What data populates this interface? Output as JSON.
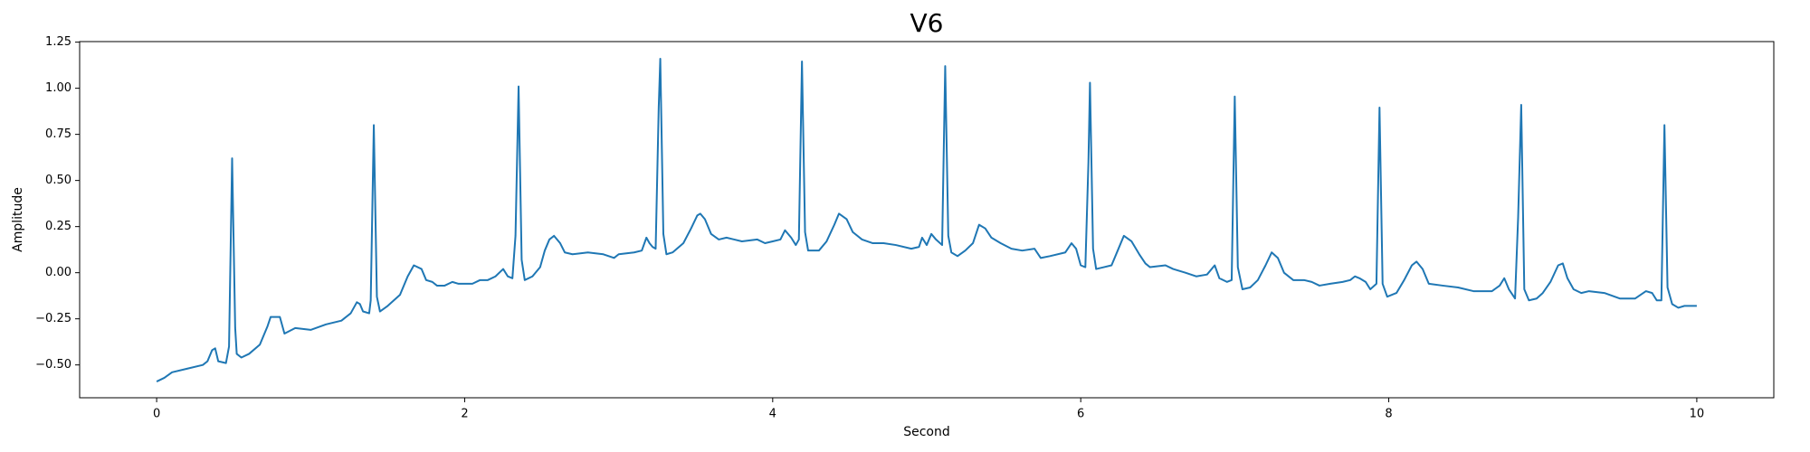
{
  "chart_data": {
    "type": "line",
    "title": "V6",
    "x_label": "Second",
    "y_label": "Amplitude",
    "xlim": [
      -0.5,
      10.5
    ],
    "ylim": [
      -0.678,
      1.253
    ],
    "xticks": [
      0,
      2,
      4,
      6,
      8,
      10
    ],
    "yticks": [
      {
        "value": -0.5,
        "label": "−0.50"
      },
      {
        "value": -0.25,
        "label": "−0.25"
      },
      {
        "value": 0,
        "label": "0.00"
      },
      0.25,
      {
        "value": 0.5,
        "label": "0.50"
      },
      0.75,
      {
        "value": 1,
        "label": "1.00"
      },
      1.25
    ],
    "grid": false,
    "series": [
      {
        "name": "V6",
        "color": "#1f77b4",
        "x": [
          0,
          0.05,
          0.1,
          0.2,
          0.3,
          0.33,
          0.36,
          0.38,
          0.4,
          0.45,
          0.47,
          0.49,
          0.51,
          0.52,
          0.55,
          0.6,
          0.67,
          0.72,
          0.74,
          0.8,
          0.83,
          0.9,
          1.0,
          1.1,
          1.2,
          1.26,
          1.3,
          1.32,
          1.34,
          1.38,
          1.39,
          1.41,
          1.43,
          1.45,
          1.5,
          1.58,
          1.63,
          1.67,
          1.72,
          1.75,
          1.79,
          1.82,
          1.87,
          1.92,
          1.96,
          2.05,
          2.1,
          2.15,
          2.2,
          2.25,
          2.28,
          2.31,
          2.33,
          2.35,
          2.37,
          2.39,
          2.44,
          2.49,
          2.52,
          2.55,
          2.58,
          2.62,
          2.65,
          2.7,
          2.8,
          2.9,
          2.97,
          3.0,
          3.1,
          3.15,
          3.18,
          3.2,
          3.22,
          3.24,
          3.26,
          3.27,
          3.29,
          3.31,
          3.35,
          3.42,
          3.47,
          3.51,
          3.53,
          3.56,
          3.6,
          3.65,
          3.7,
          3.75,
          3.8,
          3.9,
          3.95,
          4.0,
          4.05,
          4.08,
          4.12,
          4.15,
          4.17,
          4.19,
          4.21,
          4.23,
          4.3,
          4.35,
          4.4,
          4.43,
          4.48,
          4.52,
          4.58,
          4.65,
          4.72,
          4.8,
          4.9,
          4.95,
          4.97,
          5.0,
          5.03,
          5.06,
          5.1,
          5.12,
          5.14,
          5.16,
          5.2,
          5.25,
          5.3,
          5.34,
          5.38,
          5.42,
          5.48,
          5.55,
          5.62,
          5.7,
          5.74,
          5.8,
          5.9,
          5.94,
          5.97,
          6.0,
          6.03,
          6.05,
          6.06,
          6.08,
          6.1,
          6.15,
          6.2,
          6.24,
          6.28,
          6.33,
          6.38,
          6.42,
          6.45,
          6.55,
          6.6,
          6.68,
          6.75,
          6.82,
          6.87,
          6.9,
          6.95,
          6.98,
          7.0,
          7.02,
          7.05,
          7.1,
          7.15,
          7.2,
          7.24,
          7.28,
          7.32,
          7.38,
          7.45,
          7.5,
          7.55,
          7.62,
          7.7,
          7.75,
          7.78,
          7.81,
          7.85,
          7.88,
          7.92,
          7.94,
          7.96,
          7.99,
          8.05,
          8.1,
          8.15,
          8.18,
          8.22,
          8.26,
          8.35,
          8.45,
          8.55,
          8.6,
          8.67,
          8.72,
          8.75,
          8.78,
          8.82,
          8.84,
          8.86,
          8.88,
          8.91,
          8.96,
          9.0,
          9.05,
          9.1,
          9.13,
          9.16,
          9.2,
          9.25,
          9.3,
          9.4,
          9.5,
          9.6,
          9.67,
          9.71,
          9.74,
          9.77,
          9.79,
          9.81,
          9.84,
          9.88,
          9.92,
          10.0
        ],
        "values": [
          -0.59,
          -0.57,
          -0.54,
          -0.52,
          -0.5,
          -0.48,
          -0.42,
          -0.41,
          -0.48,
          -0.49,
          -0.4,
          0.62,
          -0.3,
          -0.44,
          -0.46,
          -0.44,
          -0.39,
          -0.29,
          -0.24,
          -0.24,
          -0.33,
          -0.3,
          -0.31,
          -0.28,
          -0.26,
          -0.22,
          -0.16,
          -0.17,
          -0.21,
          -0.22,
          -0.15,
          0.8,
          -0.13,
          -0.21,
          -0.18,
          -0.12,
          -0.02,
          0.04,
          0.02,
          -0.04,
          -0.05,
          -0.07,
          -0.07,
          -0.05,
          -0.06,
          -0.06,
          -0.04,
          -0.04,
          -0.02,
          0.02,
          -0.02,
          -0.03,
          0.2,
          1.01,
          0.07,
          -0.04,
          -0.02,
          0.03,
          0.12,
          0.18,
          0.2,
          0.16,
          0.11,
          0.1,
          0.11,
          0.1,
          0.08,
          0.1,
          0.11,
          0.12,
          0.19,
          0.16,
          0.14,
          0.13,
          0.9,
          1.16,
          0.21,
          0.1,
          0.11,
          0.16,
          0.24,
          0.31,
          0.32,
          0.29,
          0.21,
          0.18,
          0.19,
          0.18,
          0.17,
          0.18,
          0.16,
          0.17,
          0.18,
          0.23,
          0.19,
          0.15,
          0.18,
          1.145,
          0.22,
          0.12,
          0.12,
          0.17,
          0.26,
          0.32,
          0.29,
          0.22,
          0.18,
          0.16,
          0.16,
          0.15,
          0.13,
          0.14,
          0.19,
          0.15,
          0.21,
          0.18,
          0.15,
          1.12,
          0.2,
          0.11,
          0.09,
          0.12,
          0.16,
          0.26,
          0.24,
          0.19,
          0.16,
          0.13,
          0.12,
          0.13,
          0.08,
          0.09,
          0.11,
          0.16,
          0.13,
          0.04,
          0.03,
          0.6,
          1.03,
          0.13,
          0.02,
          0.03,
          0.04,
          0.12,
          0.2,
          0.17,
          0.1,
          0.05,
          0.03,
          0.04,
          0.02,
          0,
          -0.02,
          -0.01,
          0.04,
          -0.03,
          -0.05,
          -0.04,
          0.955,
          0.03,
          -0.09,
          -0.08,
          -0.04,
          0.04,
          0.11,
          0.08,
          0,
          -0.04,
          -0.04,
          -0.05,
          -0.07,
          -0.06,
          -0.05,
          -0.04,
          -0.02,
          -0.03,
          -0.05,
          -0.09,
          -0.06,
          0.895,
          -0.06,
          -0.13,
          -0.11,
          -0.04,
          0.04,
          0.06,
          0.02,
          -0.06,
          -0.07,
          -0.08,
          -0.1,
          -0.1,
          -0.1,
          -0.07,
          -0.03,
          -0.09,
          -0.14,
          0.3,
          0.91,
          -0.09,
          -0.15,
          -0.14,
          -0.11,
          -0.05,
          0.04,
          0.05,
          -0.03,
          -0.09,
          -0.11,
          -0.1,
          -0.11,
          -0.14,
          -0.14,
          -0.1,
          -0.11,
          -0.15,
          -0.15,
          0.8,
          -0.08,
          -0.17,
          -0.19,
          -0.18,
          -0.18
        ]
      }
    ]
  }
}
